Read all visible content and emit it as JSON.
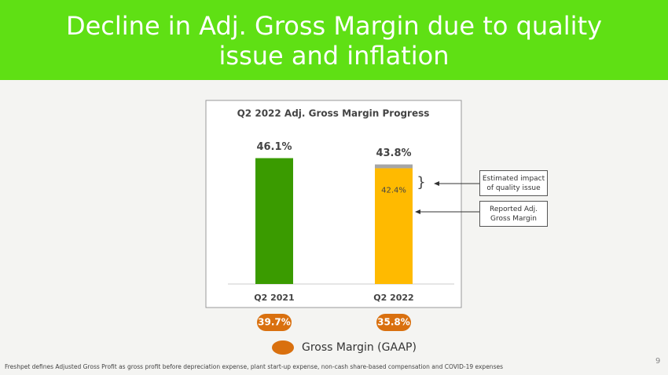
{
  "title": "Decline in Adj. Gross Margin due to quality issue and inflation",
  "footnote": "Freshpet defines Adjusted Gross Profit as gross profit before depreciation expense, plant start-up expense, non-cash share-based compensation and COVID-19 expenses",
  "page_number": "9",
  "chart_data": {
    "type": "bar",
    "title": "Q2 2022 Adj. Gross Margin Progress",
    "categories": [
      "Q2 2021",
      "Q2 2022"
    ],
    "series": [
      {
        "colors": [
          "#3a9b00",
          "#ffba00"
        ],
        "values": [
          46.1,
          42.4
        ],
        "value_labels": [
          null,
          "42.4%"
        ]
      },
      {
        "color": "#a6a6a6",
        "values": [
          null,
          1.4
        ]
      }
    ],
    "totals": [
      46.1,
      43.8
    ],
    "total_labels": [
      "46.1%",
      "43.8%"
    ],
    "ylim": [
      0,
      50
    ],
    "annotations": [
      "Estimated impact of quality issue",
      "Reported Adj. Gross Margin"
    ],
    "gaap": {
      "name": "Gross Margin (GAAP)",
      "color": "#d9700f",
      "values": [
        39.7,
        35.8
      ],
      "value_labels": [
        "39.7%",
        "35.8%"
      ]
    }
  }
}
